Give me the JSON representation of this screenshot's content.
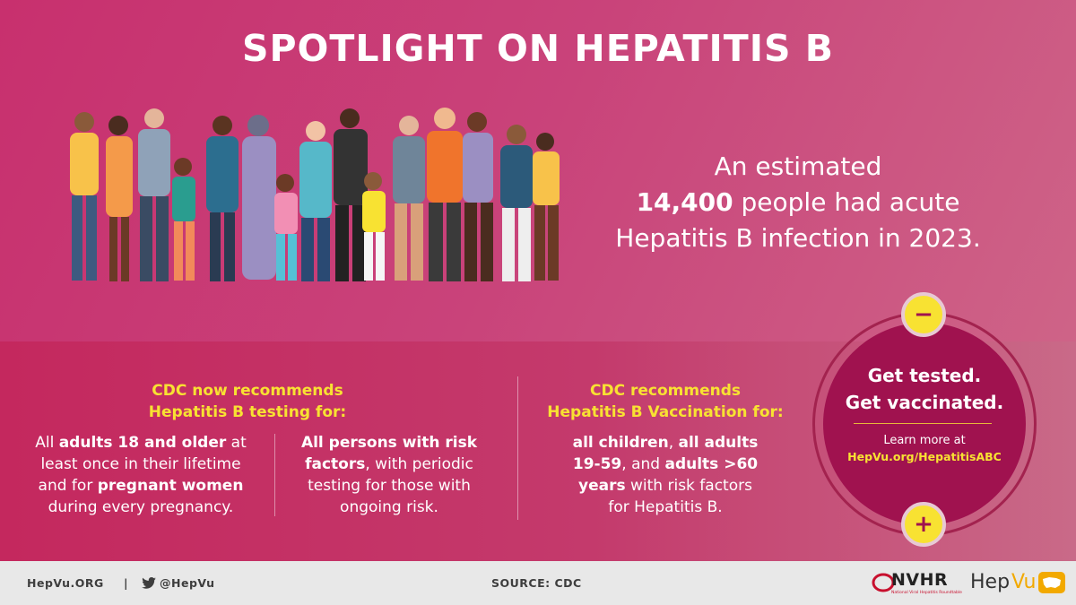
{
  "title": "SPOTLIGHT ON HEPATITIS B",
  "illustration": {
    "icon": "diverse-group-of-people-illustration"
  },
  "stat": {
    "line1": "An estimated",
    "number": "14,400",
    "line2_rest": " people had acute",
    "line3": "Hepatitis B infection in 2023."
  },
  "testing": {
    "heading_line1": "CDC now recommends",
    "heading_line2": "Hepatitis B testing for:",
    "col1": {
      "l1a": "All ",
      "l1b": "adults 18 and older",
      "l1c": " at",
      "l2": "least once in their lifetime",
      "l3a": "and for ",
      "l3b": "pregnant women",
      "l4": "during every pregnancy."
    },
    "col2": {
      "l1": "All persons with risk",
      "l2a": "factors",
      "l2b": ", with periodic",
      "l3": "testing for those with",
      "l4": "ongoing risk."
    }
  },
  "vaccination": {
    "heading_line1": "CDC recommends",
    "heading_line2": "Hepatitis B Vaccination for:",
    "l1a": "all children",
    "l1b": ", ",
    "l1c": "all adults",
    "l2a": "19-59",
    "l2b": ", and ",
    "l2c": "adults >60",
    "l3a": "years",
    "l3b": " with risk factors",
    "l4": "for Hepatitis B."
  },
  "callout": {
    "line1": "Get tested.",
    "line2": "Get vaccinated.",
    "learn": "Learn more at",
    "link": "HepVu.org/HepatitisABC",
    "minus": "−",
    "plus": "+"
  },
  "footer": {
    "site": "HepVu.ORG",
    "sep": "|",
    "twitter": "@HepVu",
    "source": "SOURCE: CDC",
    "nvhr_name": "NVHR",
    "nvhr_sub": "National Viral Hepatitis Roundtable",
    "hepvu_brand_a": "Hep",
    "hepvu_brand_b": "Vu"
  },
  "colors": {
    "accent_yellow": "#f8e232",
    "dark_magenta": "#a0124f",
    "background": "#c8306e"
  }
}
